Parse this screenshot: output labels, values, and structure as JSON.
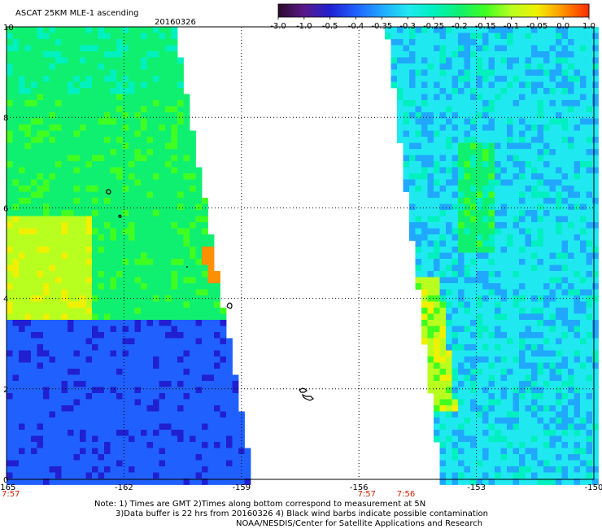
{
  "header": {
    "title": "ASCAT 25KM MLE-1 ascending",
    "date": "20160326"
  },
  "colorbar": {
    "labels": [
      "-3.0",
      "-1.0",
      "-0.5",
      "-0.4",
      "-0.35",
      "-0.3",
      "-0.25",
      "-0.2",
      "-0.15",
      "-0.1",
      "-0.05",
      "0.0",
      "1.0"
    ],
    "colors": [
      "#2a0a2a",
      "#5a1a8a",
      "#2020d0",
      "#2060ff",
      "#20a8ff",
      "#20e8f0",
      "#00f0c0",
      "#10f070",
      "#40ff20",
      "#b8ff20",
      "#f0f000",
      "#ff9000",
      "#ff2a00"
    ]
  },
  "chart_data": {
    "type": "heatmap",
    "title": "ASCAT 25KM MLE-1 ascending",
    "xlabel": "",
    "ylabel": "",
    "x_ticks": [
      "-165",
      "-162",
      "-159",
      "-156",
      "-153",
      "-150"
    ],
    "y_ticks": [
      "0",
      "2",
      "4",
      "6",
      "8",
      "10"
    ],
    "xlim": [
      -165,
      -150
    ],
    "ylim": [
      0,
      10
    ],
    "grid": true,
    "time_labels": [
      "7:57",
      "7:57",
      "7:56"
    ],
    "colorbar_labels": [
      "-3.0",
      "-1.0",
      "-0.5",
      "-0.4",
      "-0.35",
      "-0.3",
      "-0.25",
      "-0.2",
      "-0.15",
      "-0.1",
      "-0.05",
      "0.0",
      "1.0"
    ],
    "swaths": [
      {
        "name": "west swath",
        "lon_west": -165,
        "lon_east_at_lat10": -160.7,
        "lon_east_at_lat0": -158.7
      },
      {
        "name": "east swath",
        "lon_west_at_lat10": -155.3,
        "lon_west_at_lat0": -153.9,
        "lon_east": -150
      }
    ],
    "regions": [
      {
        "swath": "west",
        "lat_range": [
          0,
          3.5
        ],
        "approx_value": -0.4
      },
      {
        "swath": "west",
        "lat_range": [
          3.5,
          10
        ],
        "approx_value": -0.2
      },
      {
        "swath": "west",
        "lat_range": [
          4.3,
          5.2
        ],
        "approx_value": 0.0
      },
      {
        "swath": "east",
        "lat_range": [
          0,
          10
        ],
        "approx_value": -0.3
      },
      {
        "swath": "east",
        "lat_range": [
          1.5,
          4.5
        ],
        "approx_value": -0.1
      }
    ]
  },
  "footer": {
    "note_line1": "Note: 1) Times are GMT 2)Times along bottom correspond to measurement at 5N",
    "note_line2": "3)Data buffer is 22 hrs from 20160326 4) Black wind barbs indicate possible contamination",
    "note_line3": "NOAA/NESDIS/Center for Satellite Applications and Research"
  }
}
